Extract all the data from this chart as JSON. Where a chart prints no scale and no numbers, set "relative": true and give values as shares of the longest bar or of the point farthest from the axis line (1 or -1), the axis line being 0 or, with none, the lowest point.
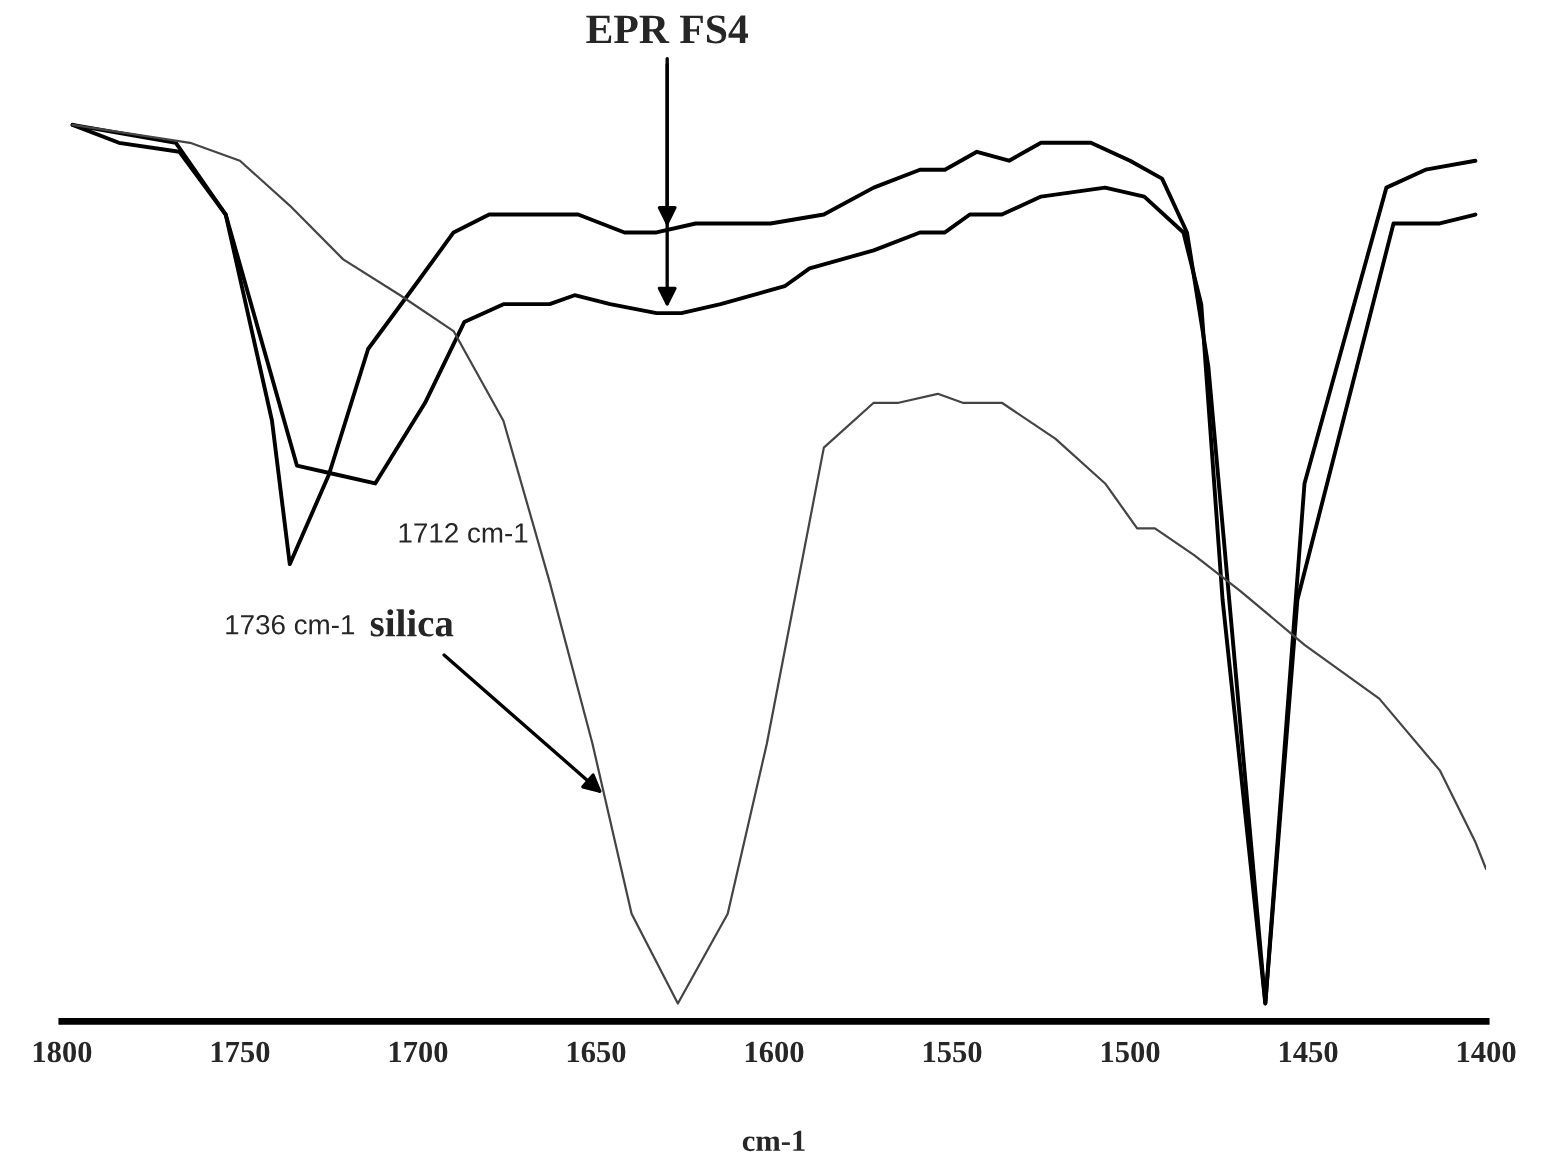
{
  "chart_data": {
    "type": "line",
    "relative": true,
    "xlabel": "cm-1",
    "xlim": [
      1800,
      1400
    ],
    "xticks": [
      1800,
      1750,
      1700,
      1650,
      1600,
      1550,
      1500,
      1450,
      1400
    ],
    "series": [
      {
        "color": "#000000",
        "x": [
          1797,
          1784,
          1767,
          1754,
          1734,
          1723,
          1712,
          1698,
          1687,
          1676,
          1663,
          1656,
          1646,
          1633,
          1626,
          1615,
          1597,
          1590,
          1572,
          1559,
          1552,
          1545,
          1536,
          1525,
          1507,
          1496,
          1485,
          1480,
          1474,
          1462,
          1453,
          1426,
          1413,
          1403
        ],
        "values": [
          1.0,
          0.98,
          0.97,
          0.9,
          0.62,
          0.61,
          0.6,
          0.69,
          0.78,
          0.8,
          0.8,
          0.81,
          0.8,
          0.79,
          0.79,
          0.8,
          0.82,
          0.84,
          0.86,
          0.88,
          0.88,
          0.9,
          0.9,
          0.92,
          0.93,
          0.92,
          0.88,
          0.8,
          0.47,
          0.02,
          0.47,
          0.89,
          0.89,
          0.9
        ]
      },
      {
        "color": "#000000",
        "x": [
          1797,
          1768,
          1754,
          1741,
          1736,
          1725,
          1714,
          1701,
          1690,
          1680,
          1666,
          1655,
          1642,
          1633,
          1622,
          1601,
          1586,
          1572,
          1559,
          1552,
          1543,
          1534,
          1525,
          1511,
          1500,
          1491,
          1484,
          1478,
          1462,
          1451,
          1428,
          1417,
          1403
        ],
        "values": [
          1.0,
          0.98,
          0.9,
          0.67,
          0.51,
          0.61,
          0.75,
          0.82,
          0.88,
          0.9,
          0.9,
          0.9,
          0.88,
          0.88,
          0.89,
          0.89,
          0.9,
          0.93,
          0.95,
          0.95,
          0.97,
          0.96,
          0.98,
          0.98,
          0.96,
          0.94,
          0.88,
          0.73,
          0.02,
          0.6,
          0.93,
          0.95,
          0.96
        ]
      },
      {
        "color": "#444444",
        "x": [
          1797,
          1764,
          1750,
          1736,
          1721,
          1705,
          1690,
          1676,
          1663,
          1651,
          1640,
          1627,
          1613,
          1602,
          1586,
          1572,
          1565,
          1554,
          1547,
          1536,
          1521,
          1507,
          1498,
          1493,
          1482,
          1469,
          1451,
          1430,
          1413,
          1403,
          1400
        ],
        "values": [
          1.0,
          0.98,
          0.96,
          0.91,
          0.85,
          0.81,
          0.77,
          0.67,
          0.49,
          0.31,
          0.12,
          0.02,
          0.12,
          0.31,
          0.64,
          0.69,
          0.69,
          0.7,
          0.69,
          0.69,
          0.65,
          0.6,
          0.55,
          0.55,
          0.52,
          0.48,
          0.42,
          0.36,
          0.28,
          0.2,
          0.17
        ]
      }
    ],
    "annotations": [
      {
        "text": "EPR FS4",
        "x": 1630,
        "y": 0.88
      },
      {
        "text": "1712 cm-1",
        "x": 1712,
        "y": 0.6
      },
      {
        "text": "1736 cm-1",
        "x": 1736,
        "y": 0.51
      },
      {
        "text": "silica",
        "x": 1647,
        "y": 0.25
      }
    ],
    "grid": false,
    "legend": false
  }
}
